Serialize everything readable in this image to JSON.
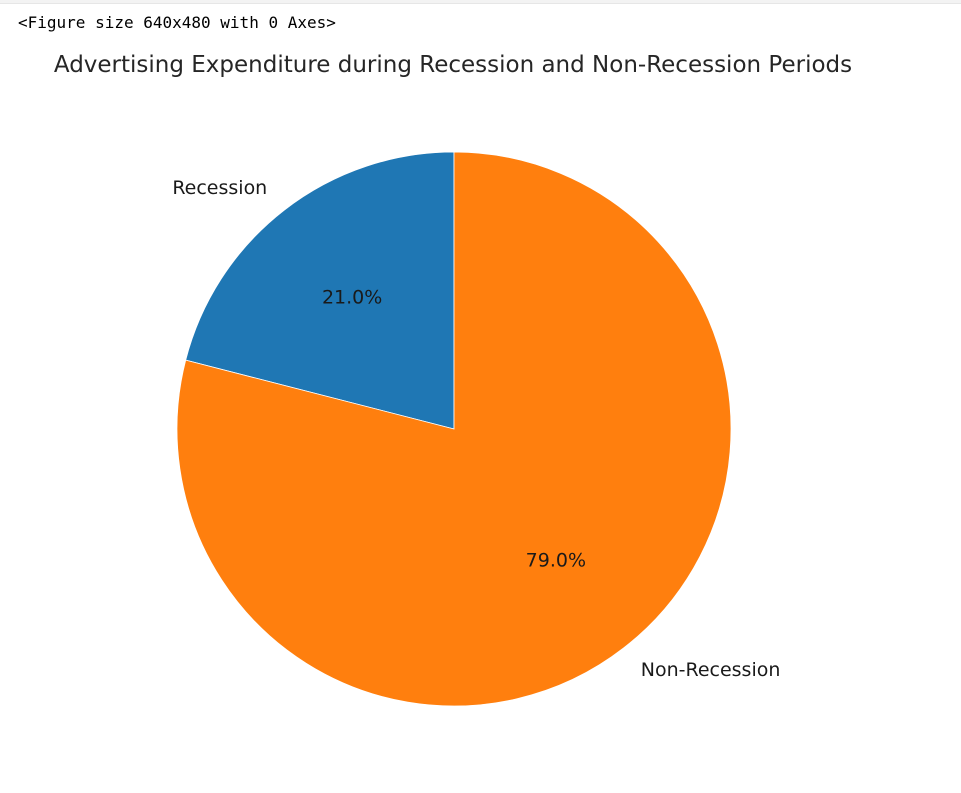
{
  "output": {
    "figure_text": "<Figure size 640x480 with 0 Axes>"
  },
  "chart_data": {
    "type": "pie",
    "title": "Advertising Expenditure during Recession and Non-Recession Periods",
    "slices": [
      {
        "label": "Recession",
        "value": 21.0,
        "pct_label": "21.0%",
        "color": "#1f77b4"
      },
      {
        "label": "Non-Recession",
        "value": 79.0,
        "pct_label": "79.0%",
        "color": "#ff7f0e"
      }
    ],
    "start_angle_deg": 90,
    "direction": "counterclockwise"
  }
}
